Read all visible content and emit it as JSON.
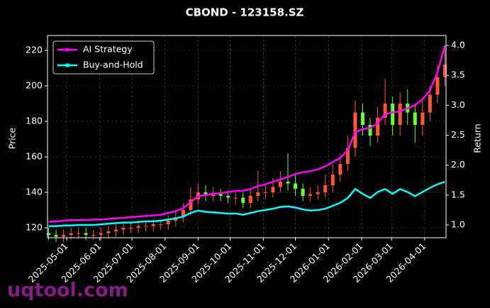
{
  "chart_data": {
    "type": "candlestick",
    "title": "CBOND - 123158.SZ",
    "ylabel": "Price",
    "y2label": "Return",
    "watermark": "uqtool.com",
    "up_color": "#ff5533",
    "down_color": "#66ff33",
    "grid": true,
    "legend": "upper left",
    "xlim": [
      "2025-04-13",
      "2026-04-21"
    ],
    "xticks": [
      "2025-05-01",
      "2025-06-01",
      "2025-07-01",
      "2025-08-01",
      "2025-09-01",
      "2025-10-01",
      "2025-11-01",
      "2025-12-01",
      "2026-01-01",
      "2026-02-01",
      "2026-03-01",
      "2026-04-01"
    ],
    "ylim": [
      114.4,
      228.4
    ],
    "yticks": [
      120,
      140,
      160,
      180,
      200,
      220
    ],
    "y2lim": [
      0.786,
      4.166
    ],
    "y2ticks": [
      {
        "value": 1,
        "label": "1.0"
      },
      1.5,
      {
        "value": 2,
        "label": "2.0"
      },
      2.5,
      {
        "value": 3,
        "label": "3.0"
      },
      3.5,
      {
        "value": 4,
        "label": "4.0"
      }
    ],
    "x": [
      "2025-04-14",
      "2025-04-21",
      "2025-04-28",
      "2025-05-05",
      "2025-05-12",
      "2025-05-19",
      "2025-05-26",
      "2025-06-02",
      "2025-06-09",
      "2025-06-16",
      "2025-06-23",
      "2025-06-30",
      "2025-07-07",
      "2025-07-14",
      "2025-07-21",
      "2025-07-28",
      "2025-08-04",
      "2025-08-11",
      "2025-08-18",
      "2025-08-25",
      "2025-09-01",
      "2025-09-08",
      "2025-09-15",
      "2025-09-22",
      "2025-09-29",
      "2025-10-06",
      "2025-10-13",
      "2025-10-20",
      "2025-10-27",
      "2025-11-03",
      "2025-11-10",
      "2025-11-17",
      "2025-11-24",
      "2025-12-01",
      "2025-12-08",
      "2025-12-15",
      "2025-12-22",
      "2025-12-29",
      "2026-01-05",
      "2026-01-12",
      "2026-01-19",
      "2026-01-26",
      "2026-02-02",
      "2026-02-09",
      "2026-02-16",
      "2026-02-23",
      "2026-03-02",
      "2026-03-09",
      "2026-03-16",
      "2026-03-23",
      "2026-03-30",
      "2026-04-06",
      "2026-04-13",
      "2026-04-20"
    ],
    "open": [
      117,
      116,
      115,
      116,
      117,
      117,
      116,
      116,
      117,
      118,
      119,
      120,
      120,
      121,
      121,
      122,
      122,
      124,
      126,
      130,
      136,
      140,
      138,
      139,
      138,
      137,
      137,
      134,
      138,
      140,
      140,
      143,
      146,
      145,
      142,
      138,
      139,
      140,
      144,
      150,
      156,
      165,
      185,
      178,
      172,
      182,
      190,
      178,
      190,
      185,
      178,
      185,
      195,
      205
    ],
    "high": [
      120,
      119,
      119,
      120,
      120,
      120,
      119,
      120,
      121,
      122,
      123,
      123,
      124,
      124,
      125,
      125,
      127,
      129,
      134,
      143,
      145,
      144,
      143,
      142,
      141,
      141,
      140,
      142,
      152,
      145,
      148,
      152,
      162,
      150,
      145,
      143,
      144,
      150,
      156,
      162,
      172,
      192,
      190,
      182,
      188,
      204,
      194,
      196,
      198,
      190,
      192,
      200,
      212,
      222
    ],
    "low": [
      113,
      112,
      112,
      113,
      114,
      113,
      113,
      113,
      114,
      115,
      116,
      117,
      117,
      118,
      118,
      119,
      119,
      121,
      123,
      127,
      133,
      135,
      135,
      135,
      134,
      133,
      131,
      131,
      135,
      136,
      137,
      140,
      141,
      138,
      135,
      135,
      136,
      137,
      140,
      146,
      152,
      160,
      172,
      166,
      168,
      178,
      172,
      172,
      178,
      168,
      172,
      180,
      190,
      200
    ],
    "close": [
      116,
      115,
      116,
      117,
      117,
      116,
      116,
      117,
      118,
      119,
      120,
      120,
      121,
      121,
      122,
      122,
      124,
      126,
      130,
      136,
      140,
      138,
      139,
      138,
      137,
      137,
      134,
      138,
      140,
      140,
      143,
      146,
      145,
      142,
      138,
      139,
      140,
      144,
      150,
      156,
      165,
      185,
      178,
      172,
      182,
      190,
      178,
      190,
      185,
      178,
      185,
      195,
      205,
      212
    ],
    "series": [
      {
        "name": "AI Strategy",
        "color": "#ff00ff",
        "axis": "y2",
        "values": [
          1.05,
          1.06,
          1.07,
          1.08,
          1.08,
          1.08,
          1.09,
          1.09,
          1.1,
          1.11,
          1.12,
          1.13,
          1.14,
          1.15,
          1.16,
          1.17,
          1.2,
          1.23,
          1.28,
          1.38,
          1.48,
          1.5,
          1.52,
          1.53,
          1.55,
          1.57,
          1.57,
          1.6,
          1.65,
          1.68,
          1.72,
          1.76,
          1.8,
          1.85,
          1.88,
          1.9,
          1.93,
          1.98,
          2.05,
          2.12,
          2.25,
          2.55,
          2.6,
          2.62,
          2.7,
          2.85,
          2.88,
          2.9,
          2.95,
          3.0,
          3.1,
          3.25,
          3.55,
          4.0
        ]
      },
      {
        "name": "Buy-and-Hold",
        "color": "#00ffff",
        "axis": "y2",
        "values": [
          0.98,
          0.98,
          0.99,
          0.99,
          1.0,
          1.0,
          1.0,
          1.01,
          1.02,
          1.03,
          1.04,
          1.04,
          1.05,
          1.06,
          1.06,
          1.07,
          1.09,
          1.11,
          1.14,
          1.2,
          1.24,
          1.22,
          1.21,
          1.2,
          1.19,
          1.19,
          1.17,
          1.2,
          1.23,
          1.25,
          1.27,
          1.3,
          1.31,
          1.29,
          1.26,
          1.24,
          1.25,
          1.27,
          1.32,
          1.37,
          1.45,
          1.6,
          1.52,
          1.45,
          1.55,
          1.6,
          1.52,
          1.6,
          1.55,
          1.48,
          1.55,
          1.62,
          1.68,
          1.72
        ]
      }
    ]
  }
}
